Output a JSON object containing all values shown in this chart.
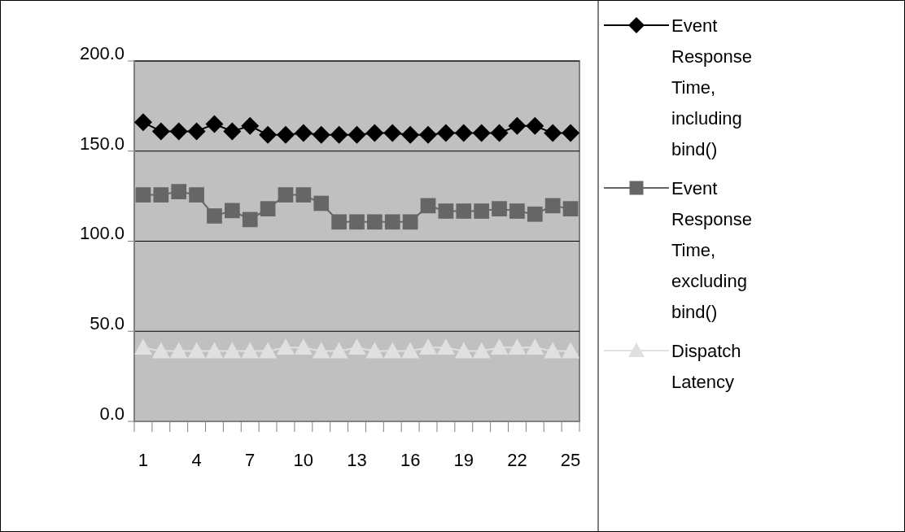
{
  "chart_data": {
    "type": "line",
    "categories": [
      "1",
      null,
      null,
      "4",
      null,
      null,
      "7",
      null,
      null,
      "10",
      null,
      null,
      "13",
      null,
      null,
      "16",
      null,
      null,
      "19",
      null,
      null,
      "22",
      null,
      null,
      "25"
    ],
    "ylim": [
      0,
      200
    ],
    "yticks": [
      {
        "value": 0,
        "label": "0.0"
      },
      {
        "value": 50,
        "label": "50.0"
      },
      {
        "value": 100,
        "label": "100.0"
      },
      {
        "value": 150,
        "label": "150.0"
      },
      {
        "value": 200,
        "label": "200.0"
      }
    ],
    "grid": "y",
    "legend": "right",
    "series": [
      {
        "name": "Event Response Time, including bind()",
        "color": "#000000",
        "marker": "diamond",
        "values": [
          166,
          161,
          161,
          161,
          165,
          161,
          164,
          159,
          159,
          160,
          159,
          159,
          159,
          160,
          160,
          159,
          159,
          160,
          160,
          160,
          160,
          164,
          164,
          160,
          160
        ]
      },
      {
        "name": "Event Response Time, excluding bind()",
        "color": "#666666",
        "marker": "square",
        "values": [
          125.7,
          125.7,
          127.5,
          125.7,
          114,
          117,
          112,
          118,
          125.7,
          125.7,
          121,
          110.7,
          110.7,
          110.7,
          110.7,
          110.7,
          119.7,
          116.7,
          116.7,
          116.7,
          118,
          116.7,
          115,
          119.7,
          118
        ]
      },
      {
        "name": "Dispatch Latency",
        "color": "#e0e0e0",
        "marker": "triangle",
        "values": [
          41,
          39,
          39,
          39,
          39,
          39,
          39,
          39,
          41,
          41,
          39,
          39,
          41,
          39,
          39,
          39,
          41,
          41,
          39,
          39,
          41,
          41,
          41,
          39,
          39
        ]
      }
    ]
  }
}
